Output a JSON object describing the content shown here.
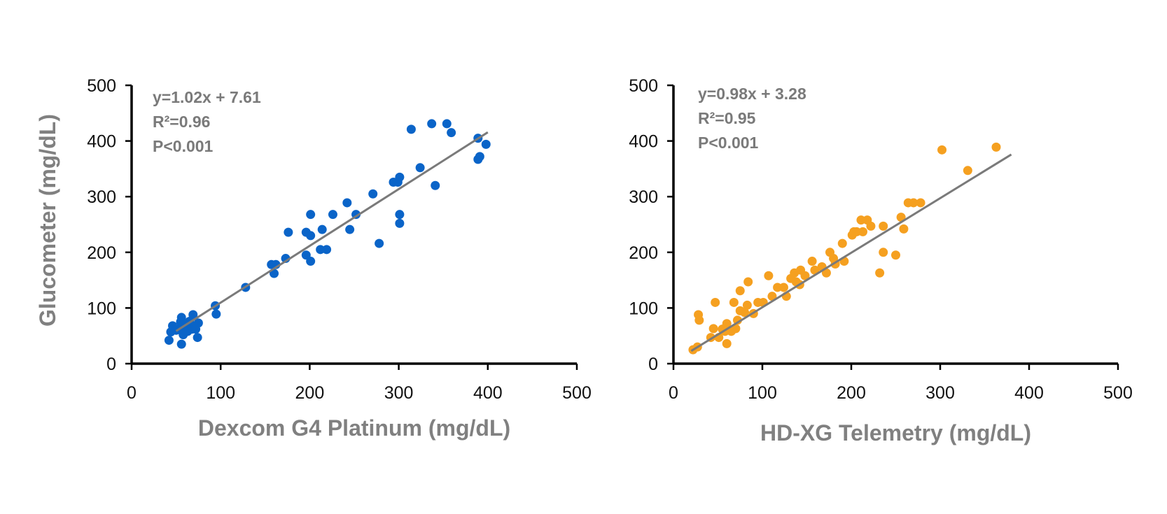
{
  "ylabel": "Glucometer (mg/dL)",
  "chart_data": [
    {
      "type": "scatter",
      "xlabel": "Dexcom G4 Platinum (mg/dL)",
      "ylabel": "Glucometer (mg/dL)",
      "xlim": [
        0,
        500
      ],
      "ylim": [
        0,
        500
      ],
      "xticks": [
        "0",
        "100",
        "200",
        "300",
        "400",
        "500"
      ],
      "yticks": [
        "0",
        "100",
        "200",
        "300",
        "400",
        "500"
      ],
      "point_color": "#0a64c8",
      "fit_color": "#7a7a7a",
      "annotations": [
        "y=1.02x + 7.61",
        "R²=0.96",
        "P<0.001"
      ],
      "fit": {
        "slope": 1.02,
        "intercept": 7.61,
        "x_range": [
          50,
          400
        ]
      },
      "points": [
        [
          42,
          42
        ],
        [
          44,
          57
        ],
        [
          46,
          68
        ],
        [
          50,
          60
        ],
        [
          54,
          63
        ],
        [
          55,
          75
        ],
        [
          56,
          35
        ],
        [
          56,
          83
        ],
        [
          58,
          52
        ],
        [
          60,
          70
        ],
        [
          63,
          58
        ],
        [
          65,
          76
        ],
        [
          68,
          62
        ],
        [
          69,
          88
        ],
        [
          71,
          68
        ],
        [
          72,
          62
        ],
        [
          74,
          47
        ],
        [
          75,
          73
        ],
        [
          94,
          104
        ],
        [
          95,
          89
        ],
        [
          128,
          137
        ],
        [
          157,
          178
        ],
        [
          160,
          162
        ],
        [
          162,
          178
        ],
        [
          173,
          189
        ],
        [
          176,
          236
        ],
        [
          196,
          195
        ],
        [
          196,
          236
        ],
        [
          201,
          184
        ],
        [
          201,
          230
        ],
        [
          201,
          268
        ],
        [
          212,
          205
        ],
        [
          214,
          241
        ],
        [
          219,
          205
        ],
        [
          226,
          268
        ],
        [
          242,
          289
        ],
        [
          245,
          241
        ],
        [
          252,
          268
        ],
        [
          271,
          305
        ],
        [
          278,
          216
        ],
        [
          294,
          326
        ],
        [
          299,
          326
        ],
        [
          301,
          252
        ],
        [
          301,
          268
        ],
        [
          301,
          335
        ],
        [
          314,
          421
        ],
        [
          324,
          352
        ],
        [
          337,
          431
        ],
        [
          341,
          320
        ],
        [
          354,
          431
        ],
        [
          359,
          415
        ],
        [
          389,
          367
        ],
        [
          389,
          405
        ],
        [
          391,
          372
        ],
        [
          398,
          394
        ]
      ]
    },
    {
      "type": "scatter",
      "xlabel": "HD-XG Telemetry (mg/dL)",
      "ylabel": "",
      "xlim": [
        0,
        500
      ],
      "ylim": [
        0,
        500
      ],
      "xticks": [
        "0",
        "100",
        "200",
        "300",
        "400",
        "500"
      ],
      "yticks": [
        "0",
        "100",
        "200",
        "300",
        "400",
        "500"
      ],
      "point_color": "#f5a020",
      "fit_color": "#7a7a7a",
      "annotations": [
        "y=0.98x + 3.28",
        "R²=0.95",
        "P<0.001"
      ],
      "fit": {
        "slope": 0.98,
        "intercept": 3.28,
        "x_range": [
          20,
          380
        ]
      },
      "points": [
        [
          22,
          25
        ],
        [
          27,
          30
        ],
        [
          28,
          88
        ],
        [
          29,
          78
        ],
        [
          42,
          47
        ],
        [
          45,
          63
        ],
        [
          47,
          110
        ],
        [
          51,
          47
        ],
        [
          55,
          62
        ],
        [
          58,
          58
        ],
        [
          60,
          72
        ],
        [
          60,
          36
        ],
        [
          65,
          58
        ],
        [
          68,
          110
        ],
        [
          70,
          63
        ],
        [
          72,
          78
        ],
        [
          75,
          95
        ],
        [
          75,
          131
        ],
        [
          80,
          92
        ],
        [
          83,
          105
        ],
        [
          84,
          147
        ],
        [
          90,
          90
        ],
        [
          95,
          110
        ],
        [
          101,
          110
        ],
        [
          107,
          158
        ],
        [
          111,
          121
        ],
        [
          117,
          137
        ],
        [
          124,
          137
        ],
        [
          127,
          121
        ],
        [
          132,
          153
        ],
        [
          136,
          163
        ],
        [
          138,
          147
        ],
        [
          142,
          142
        ],
        [
          143,
          168
        ],
        [
          148,
          158
        ],
        [
          156,
          184
        ],
        [
          159,
          168
        ],
        [
          167,
          174
        ],
        [
          172,
          163
        ],
        [
          176,
          200
        ],
        [
          180,
          189
        ],
        [
          182,
          179
        ],
        [
          190,
          216
        ],
        [
          192,
          184
        ],
        [
          201,
          231
        ],
        [
          203,
          237
        ],
        [
          206,
          237
        ],
        [
          211,
          258
        ],
        [
          213,
          237
        ],
        [
          218,
          258
        ],
        [
          222,
          247
        ],
        [
          232,
          163
        ],
        [
          236,
          200
        ],
        [
          236,
          247
        ],
        [
          250,
          195
        ],
        [
          256,
          263
        ],
        [
          259,
          242
        ],
        [
          264,
          289
        ],
        [
          270,
          289
        ],
        [
          278,
          289
        ],
        [
          302,
          384
        ],
        [
          331,
          347
        ],
        [
          363,
          389
        ]
      ]
    }
  ]
}
